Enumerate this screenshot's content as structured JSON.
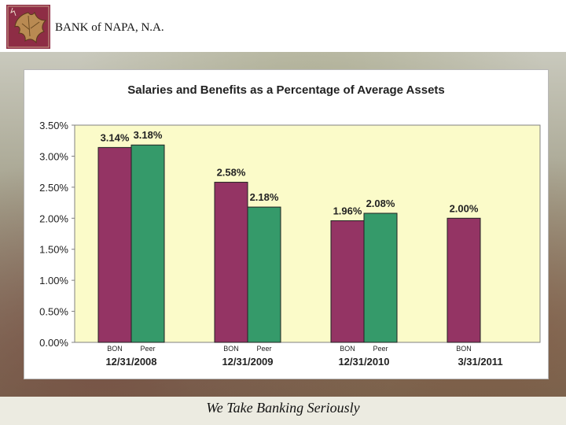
{
  "header": {
    "bank_name": "BANK of NAPA, N.A."
  },
  "footer": {
    "tagline": "We Take Banking Seriously"
  },
  "colors": {
    "bon": "#943464",
    "peer": "#359a6a",
    "plot_bg": "#fbfbc9"
  },
  "chart_data": {
    "type": "bar",
    "title": "Salaries and Benefits as a Percentage of Average Assets",
    "xlabel": "",
    "ylabel": "",
    "ylim": [
      0,
      3.5
    ],
    "yticks": [
      "0.00%",
      "0.50%",
      "1.00%",
      "1.50%",
      "2.00%",
      "2.50%",
      "3.00%",
      "3.50%"
    ],
    "grid": false,
    "legend": "none",
    "groups": [
      {
        "date": "12/31/2008",
        "bars": [
          {
            "label": "BON",
            "value": 3.14,
            "text": "3.14%"
          },
          {
            "label": "Peer",
            "value": 3.18,
            "text": "3.18%"
          }
        ]
      },
      {
        "date": "12/31/2009",
        "bars": [
          {
            "label": "BON",
            "value": 2.58,
            "text": "2.58%"
          },
          {
            "label": "Peer",
            "value": 2.18,
            "text": "2.18%"
          }
        ]
      },
      {
        "date": "12/31/2010",
        "bars": [
          {
            "label": "BON",
            "value": 1.96,
            "text": "1.96%"
          },
          {
            "label": "Peer",
            "value": 2.08,
            "text": "2.08%"
          }
        ]
      },
      {
        "date": "3/31/2011",
        "bars": [
          {
            "label": "BON",
            "value": 2.0,
            "text": "2.00%"
          }
        ]
      }
    ]
  }
}
